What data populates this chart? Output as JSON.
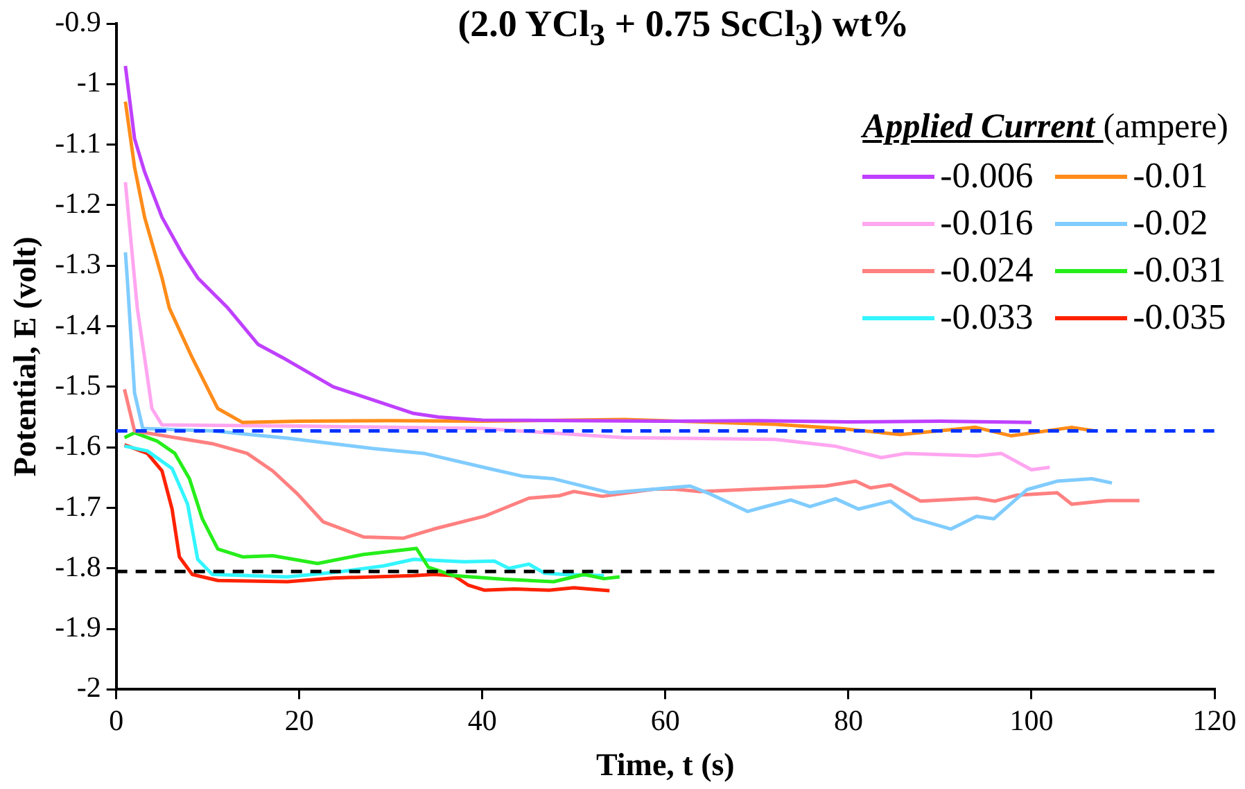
{
  "chart_data": {
    "type": "line",
    "title": "(2.0 YCl$_{3}$ + 0.75 ScCl$_{3}$) wt%",
    "xlabel": "Time, t (s)",
    "ylabel": "Potential, E (volt)",
    "legend_title": "Applied Current (ampere)",
    "legend": "top right",
    "marker": "none",
    "line_style": "solid",
    "xlim": [
      0,
      120
    ],
    "xticks": [
      0,
      20,
      40,
      60,
      80,
      100,
      120
    ],
    "ylim": [
      -2,
      -0.9
    ],
    "yticks": [
      -2,
      -1.9,
      -1.8,
      -1.7,
      -1.6,
      -1.5,
      -1.4,
      -1.3,
      -1.2,
      -1.1,
      -1,
      -0.9
    ],
    "ref_lines": [
      {
        "axis": "y",
        "value": -1.573,
        "color": "#0033ff",
        "line_style": "dashed"
      },
      {
        "axis": "y",
        "value": -1.805,
        "color": "#000000",
        "line_style": "dashed"
      }
    ],
    "series": [
      {
        "name": "-0.006",
        "color": "#bf40ff",
        "x": [
          1,
          2,
          3.1,
          5,
          7.2,
          8.9,
          12.2,
          15.5,
          18.2,
          23.7,
          32.5,
          35.2,
          40,
          50,
          60,
          70,
          80,
          90,
          100
        ],
        "values": [
          -0.97,
          -1.09,
          -1.145,
          -1.22,
          -1.28,
          -1.32,
          -1.37,
          -1.43,
          -1.452,
          -1.5,
          -1.544,
          -1.55,
          -1.555,
          -1.556,
          -1.557,
          -1.556,
          -1.558,
          -1.557,
          -1.559
        ]
      },
      {
        "name": "-0.01",
        "color": "#ff8c1a",
        "x": [
          1,
          2,
          3.1,
          5,
          5.8,
          8.3,
          11.1,
          13.8,
          20,
          30,
          40,
          55.5,
          72,
          79.1,
          85.7,
          93.9,
          97.8,
          104.4,
          106.9
        ],
        "values": [
          -1.029,
          -1.137,
          -1.22,
          -1.32,
          -1.37,
          -1.452,
          -1.536,
          -1.559,
          -1.557,
          -1.556,
          -1.557,
          -1.554,
          -1.562,
          -1.569,
          -1.579,
          -1.567,
          -1.581,
          -1.567,
          -1.573
        ]
      },
      {
        "name": "-0.016",
        "color": "#ffa6f0",
        "x": [
          1,
          2.3,
          3.1,
          3.9,
          5,
          20,
          40,
          55.5,
          72,
          78.5,
          83.6,
          86.3,
          94,
          96.7,
          100,
          102
        ],
        "values": [
          -1.162,
          -1.37,
          -1.452,
          -1.536,
          -1.563,
          -1.565,
          -1.569,
          -1.584,
          -1.587,
          -1.598,
          -1.617,
          -1.61,
          -1.614,
          -1.61,
          -1.637,
          -1.633
        ]
      },
      {
        "name": "-0.02",
        "color": "#80ccff",
        "x": [
          1,
          1.2,
          2,
          2.9,
          10.5,
          18.7,
          28.1,
          33.6,
          40.7,
          44.5,
          47.8,
          53.9,
          55.5,
          58.8,
          62.7,
          64.9,
          69,
          70.9,
          73.7,
          75.8,
          78.6,
          81.1,
          84.6,
          87.1,
          91.2,
          94,
          95.9,
          99.5,
          102.8,
          106.6,
          108.8
        ],
        "values": [
          -1.278,
          -1.32,
          -1.51,
          -1.569,
          -1.573,
          -1.585,
          -1.602,
          -1.61,
          -1.635,
          -1.648,
          -1.652,
          -1.675,
          -1.673,
          -1.669,
          -1.664,
          -1.677,
          -1.706,
          -1.698,
          -1.687,
          -1.698,
          -1.685,
          -1.702,
          -1.689,
          -1.717,
          -1.735,
          -1.714,
          -1.718,
          -1.67,
          -1.656,
          -1.652,
          -1.659
        ]
      },
      {
        "name": "-0.024",
        "color": "#ff8080",
        "x": [
          0.9,
          2,
          10.5,
          14.3,
          17.1,
          19.8,
          22.6,
          27,
          31.4,
          34.7,
          40.2,
          45.1,
          48.4,
          50,
          53.1,
          58.8,
          61,
          63.8,
          77.5,
          80.8,
          82.4,
          84.6,
          87.9,
          94,
          96,
          98.4,
          102.8,
          104.4,
          108.3,
          111.8
        ],
        "values": [
          -1.504,
          -1.573,
          -1.594,
          -1.61,
          -1.639,
          -1.677,
          -1.723,
          -1.748,
          -1.75,
          -1.735,
          -1.714,
          -1.684,
          -1.68,
          -1.673,
          -1.681,
          -1.669,
          -1.669,
          -1.673,
          -1.664,
          -1.656,
          -1.667,
          -1.662,
          -1.689,
          -1.684,
          -1.689,
          -1.679,
          -1.675,
          -1.694,
          -1.688,
          -1.688
        ]
      },
      {
        "name": "-0.031",
        "color": "#26ee1a",
        "x": [
          0.9,
          2,
          4.5,
          6.4,
          8,
          9.4,
          11.1,
          13.8,
          17.1,
          22,
          27,
          32.8,
          34.1,
          36.9,
          42.4,
          47.8,
          51.1,
          53.3,
          55
        ],
        "values": [
          -1.584,
          -1.576,
          -1.59,
          -1.61,
          -1.652,
          -1.718,
          -1.768,
          -1.781,
          -1.779,
          -1.792,
          -1.777,
          -1.767,
          -1.798,
          -1.812,
          -1.818,
          -1.822,
          -1.81,
          -1.817,
          -1.814
        ]
      },
      {
        "name": "-0.033",
        "color": "#33f5ff",
        "x": [
          0.9,
          3.4,
          6.1,
          7.8,
          8.9,
          10.5,
          18.7,
          24.2,
          29.2,
          32.5,
          38,
          41.3,
          42.9,
          45.1,
          46.8,
          48.9,
          53.3
        ],
        "values": [
          -1.598,
          -1.606,
          -1.635,
          -1.694,
          -1.785,
          -1.81,
          -1.814,
          -1.806,
          -1.796,
          -1.785,
          -1.789,
          -1.788,
          -1.8,
          -1.793,
          -1.808,
          -1.81,
          -1.812
        ]
      },
      {
        "name": "-0.035",
        "color": "#ff2200",
        "x": [
          0.9,
          3.4,
          5,
          6.1,
          6.9,
          8.3,
          11.1,
          18.7,
          23.7,
          32.5,
          34.7,
          36.9,
          38.5,
          40.2,
          43.5,
          47.3,
          50,
          53.9
        ],
        "values": [
          -1.596,
          -1.61,
          -1.639,
          -1.702,
          -1.781,
          -1.81,
          -1.82,
          -1.822,
          -1.816,
          -1.812,
          -1.81,
          -1.812,
          -1.828,
          -1.836,
          -1.834,
          -1.836,
          -1.832,
          -1.837
        ]
      }
    ]
  }
}
